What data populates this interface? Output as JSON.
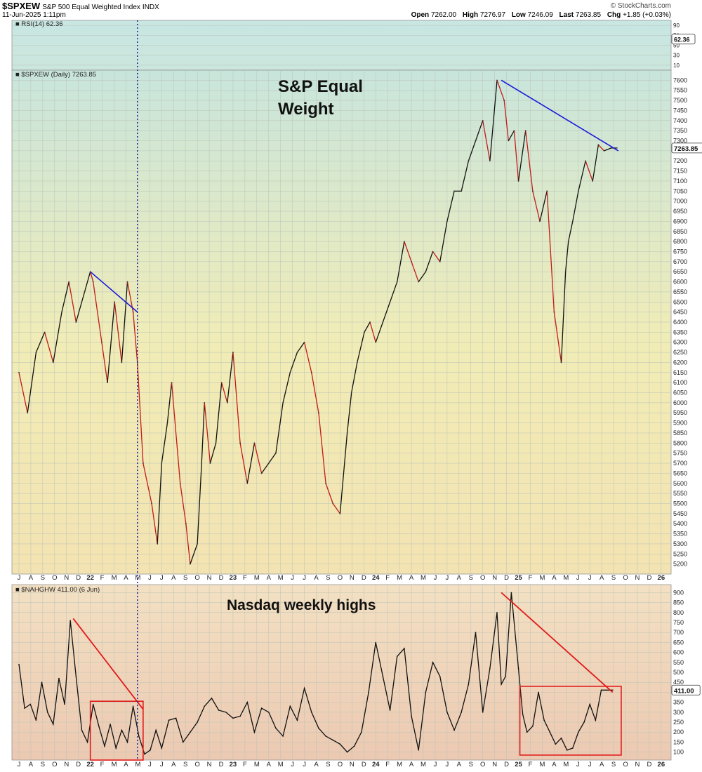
{
  "header": {
    "symbol": "$SPXEW",
    "name": "S&P 500 Equal Weighted Index",
    "exchange": "INDX",
    "date": "11-Jun-2025 1:11pm",
    "watermark": "© StockCharts.com",
    "open_label": "Open",
    "open": "7262.00",
    "high_label": "High",
    "high": "7276.97",
    "low_label": "Low",
    "low": "7246.09",
    "last_label": "Last",
    "last": "7263.85",
    "chg_label": "Chg",
    "chg": "+1.85 (+0.03%)"
  },
  "chart_data": [
    {
      "type": "line",
      "panel": "rsi",
      "legend": "RSI(14) 62.36",
      "ylim": [
        0,
        100
      ],
      "yticks": [
        10,
        30,
        50,
        70,
        90
      ],
      "last_value_label": "62.36",
      "values": [
        62.36
      ]
    },
    {
      "type": "line",
      "panel": "price",
      "legend": "$SPXEW (Daily) 7263.85",
      "annotation": "S&P Equal Weight",
      "ylim": [
        5150,
        7650
      ],
      "yticks": [
        5200,
        5250,
        5300,
        5350,
        5400,
        5450,
        5500,
        5550,
        5600,
        5650,
        5700,
        5750,
        5800,
        5850,
        5900,
        5950,
        6000,
        6050,
        6100,
        6150,
        6200,
        6250,
        6300,
        6350,
        6400,
        6450,
        6500,
        6550,
        6600,
        6650,
        6700,
        6750,
        6800,
        6850,
        6900,
        6950,
        7000,
        7050,
        7100,
        7150,
        7200,
        7250,
        7300,
        7350,
        7400,
        7450,
        7500,
        7550,
        7600
      ],
      "last_value_label": "7263.85",
      "line_colors": {
        "up": "#111111",
        "down": "#c41a1a"
      },
      "x": [
        2021.5,
        2021.56,
        2021.62,
        2021.68,
        2021.74,
        2021.8,
        2021.85,
        2021.9,
        2021.96,
        2022.0,
        2022.02,
        2022.08,
        2022.12,
        2022.17,
        2022.22,
        2022.26,
        2022.3,
        2022.33,
        2022.37,
        2022.43,
        2022.47,
        2022.5,
        2022.54,
        2022.57,
        2022.63,
        2022.67,
        2022.7,
        2022.75,
        2022.78,
        2022.8,
        2022.84,
        2022.88,
        2022.92,
        2022.96,
        2023.0,
        2023.05,
        2023.1,
        2023.15,
        2023.2,
        2023.25,
        2023.3,
        2023.35,
        2023.4,
        2023.45,
        2023.5,
        2023.55,
        2023.6,
        2023.65,
        2023.7,
        2023.75,
        2023.8,
        2023.83,
        2023.87,
        2023.92,
        2023.96,
        2024.0,
        2024.05,
        2024.1,
        2024.15,
        2024.2,
        2024.25,
        2024.3,
        2024.35,
        2024.4,
        2024.45,
        2024.5,
        2024.55,
        2024.6,
        2024.65,
        2024.7,
        2024.75,
        2024.8,
        2024.85,
        2024.9,
        2024.93,
        2024.97,
        2025.0,
        2025.05,
        2025.1,
        2025.15,
        2025.2,
        2025.25,
        2025.3,
        2025.33,
        2025.35,
        2025.38,
        2025.42,
        2025.47,
        2025.52,
        2025.56,
        2025.6,
        2025.65,
        2025.69
      ],
      "values": [
        6150,
        5950,
        6250,
        6350,
        6200,
        6450,
        6600,
        6400,
        6550,
        6650,
        6600,
        6300,
        6100,
        6500,
        6200,
        6600,
        6450,
        6200,
        5700,
        5500,
        5300,
        5700,
        5900,
        6100,
        5600,
        5400,
        5200,
        5300,
        5700,
        6000,
        5700,
        5800,
        6100,
        6000,
        6250,
        5800,
        5600,
        5800,
        5650,
        5700,
        5750,
        6000,
        6150,
        6250,
        6300,
        6150,
        5950,
        5600,
        5500,
        5450,
        5850,
        6050,
        6200,
        6350,
        6400,
        6300,
        6400,
        6500,
        6600,
        6800,
        6700,
        6600,
        6650,
        6750,
        6700,
        6900,
        7050,
        7050,
        7200,
        7300,
        7400,
        7200,
        7600,
        7500,
        7300,
        7350,
        7100,
        7350,
        7050,
        6900,
        7050,
        6450,
        6200,
        6650,
        6800,
        6900,
        7050,
        7200,
        7100,
        7280,
        7250,
        7263.85,
        7263.85
      ]
    },
    {
      "type": "line",
      "panel": "nahghw",
      "legend": "$NAHGHW 411.00 (6 Jun)",
      "annotation": "Nasdaq weekly highs",
      "ylim": [
        60,
        940
      ],
      "yticks": [
        100,
        150,
        200,
        250,
        300,
        350,
        400,
        450,
        500,
        550,
        600,
        650,
        700,
        750,
        800,
        850,
        900
      ],
      "last_value_label": "411.00",
      "x": [
        2021.5,
        2021.54,
        2021.58,
        2021.62,
        2021.66,
        2021.7,
        2021.74,
        2021.78,
        2021.82,
        2021.86,
        2021.9,
        2021.94,
        2021.98,
        2022.02,
        2022.06,
        2022.1,
        2022.14,
        2022.18,
        2022.22,
        2022.26,
        2022.3,
        2022.34,
        2022.38,
        2022.42,
        2022.46,
        2022.5,
        2022.55,
        2022.6,
        2022.65,
        2022.7,
        2022.75,
        2022.8,
        2022.85,
        2022.9,
        2022.95,
        2023.0,
        2023.05,
        2023.1,
        2023.15,
        2023.2,
        2023.25,
        2023.3,
        2023.35,
        2023.4,
        2023.45,
        2023.5,
        2023.55,
        2023.6,
        2023.65,
        2023.7,
        2023.75,
        2023.8,
        2023.85,
        2023.9,
        2023.95,
        2024.0,
        2024.05,
        2024.1,
        2024.15,
        2024.2,
        2024.25,
        2024.3,
        2024.35,
        2024.4,
        2024.45,
        2024.5,
        2024.55,
        2024.6,
        2024.65,
        2024.7,
        2024.75,
        2024.8,
        2024.85,
        2024.88,
        2024.91,
        2024.95,
        2025.0,
        2025.03,
        2025.06,
        2025.1,
        2025.14,
        2025.18,
        2025.22,
        2025.26,
        2025.3,
        2025.34,
        2025.38,
        2025.42,
        2025.46,
        2025.5,
        2025.54,
        2025.58,
        2025.62,
        2025.66
      ],
      "values": [
        540,
        320,
        340,
        260,
        450,
        300,
        240,
        470,
        340,
        760,
        480,
        210,
        150,
        340,
        230,
        130,
        240,
        120,
        210,
        150,
        330,
        180,
        90,
        110,
        210,
        120,
        260,
        270,
        150,
        200,
        250,
        330,
        370,
        310,
        300,
        270,
        280,
        350,
        200,
        320,
        300,
        220,
        180,
        330,
        260,
        420,
        300,
        220,
        180,
        160,
        140,
        100,
        130,
        200,
        400,
        650,
        480,
        310,
        580,
        620,
        280,
        110,
        400,
        550,
        480,
        300,
        210,
        300,
        440,
        700,
        300,
        520,
        800,
        440,
        480,
        900,
        520,
        290,
        200,
        230,
        400,
        260,
        200,
        140,
        170,
        110,
        120,
        200,
        250,
        340,
        260,
        411,
        411,
        411
      ]
    }
  ],
  "x_axis": {
    "month_labels": [
      "J",
      "A",
      "S",
      "O",
      "N",
      "D",
      "22",
      "F",
      "M",
      "A",
      "M",
      "J",
      "J",
      "A",
      "S",
      "O",
      "N",
      "D",
      "23",
      "F",
      "M",
      "A",
      "M",
      "J",
      "J",
      "A",
      "S",
      "O",
      "N",
      "D",
      "24",
      "F",
      "M",
      "A",
      "M",
      "J",
      "J",
      "A",
      "S",
      "O",
      "N",
      "D",
      "25",
      "F",
      "M",
      "A",
      "M",
      "J",
      "J",
      "A",
      "S",
      "O",
      "N",
      "D",
      "26"
    ]
  }
}
